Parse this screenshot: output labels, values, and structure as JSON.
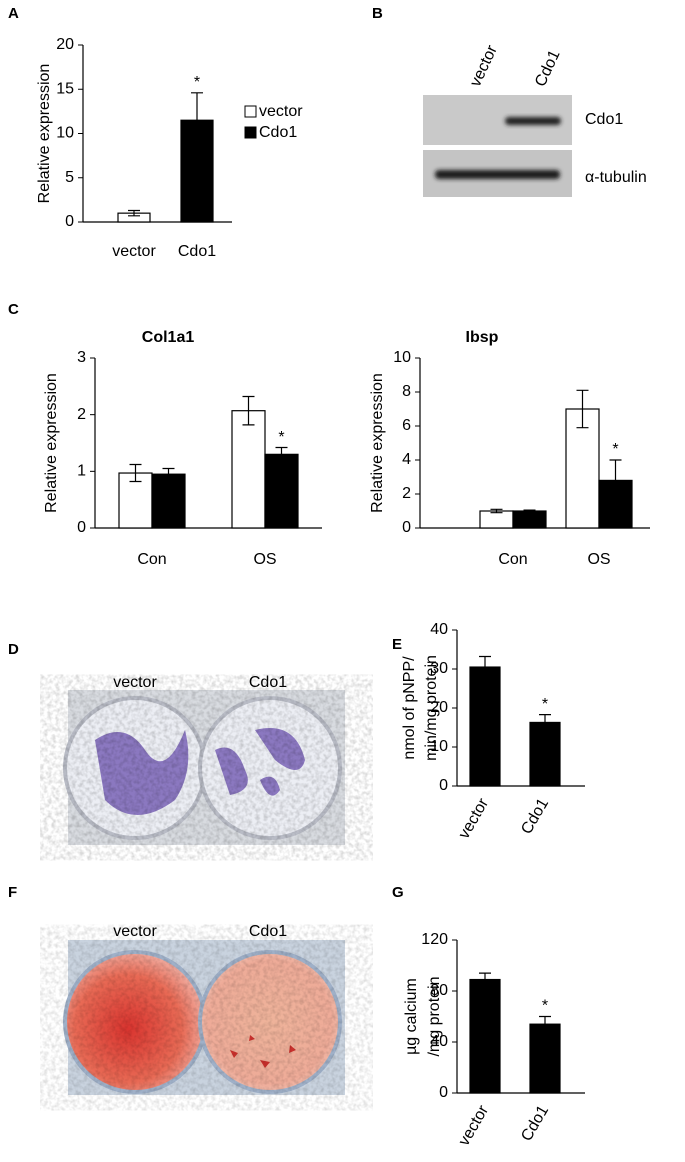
{
  "chart_data": [
    {
      "type": "bar",
      "panel": "A",
      "ylabel": [
        "Relative expression"
      ],
      "categories": [
        "vector",
        "Cdo1"
      ],
      "series": [
        {
          "colors": [
            "#ffffff",
            "#000000"
          ],
          "values": [
            1.0,
            11.5
          ],
          "errors": [
            0.3,
            3.1
          ],
          "stars": [
            null,
            "*"
          ]
        }
      ],
      "legend": [
        {
          "label": "vector",
          "color": "#ffffff"
        },
        {
          "label": "Cdo1",
          "color": "#000000"
        }
      ],
      "ylim": [
        0,
        20
      ],
      "yticks": [
        0,
        5,
        10,
        15,
        20
      ]
    },
    {
      "type": "bar",
      "panel": "C",
      "title": "Col1a1",
      "ylabel": [
        "Relative expression"
      ],
      "categories": [
        "Con",
        "OS"
      ],
      "series": [
        {
          "color": "#ffffff",
          "values": [
            0.97,
            2.07
          ],
          "errors": [
            0.15,
            0.25
          ]
        },
        {
          "color": "#000000",
          "values": [
            0.95,
            1.3
          ],
          "errors": [
            0.1,
            0.12
          ],
          "stars": [
            null,
            "*"
          ]
        }
      ],
      "ylim": [
        0,
        3
      ],
      "yticks": [
        0,
        1,
        2,
        3
      ]
    },
    {
      "type": "bar",
      "title": "Ibsp",
      "ylabel": [
        "Relative expression"
      ],
      "categories": [
        "Con",
        "OS"
      ],
      "series": [
        {
          "color": "#ffffff",
          "values": [
            1.0,
            7.0
          ],
          "errors": [
            0.1,
            1.1
          ]
        },
        {
          "color": "#000000",
          "values": [
            1.0,
            2.8
          ],
          "errors": [
            0.05,
            1.2
          ],
          "stars": [
            null,
            "*"
          ]
        }
      ],
      "ylim": [
        0,
        10
      ],
      "yticks": [
        0,
        2,
        4,
        6,
        8,
        10
      ]
    },
    {
      "type": "bar",
      "panel": "E",
      "ylabel": [
        "nmol of pNPP/",
        "min/mg protein"
      ],
      "categories": [
        "vector",
        "Cdo1"
      ],
      "series": [
        {
          "color": "#000000",
          "values": [
            30.5,
            16.3
          ],
          "errors": [
            2.7,
            2.0
          ],
          "stars": [
            null,
            "*"
          ]
        }
      ],
      "ylim": [
        0,
        40
      ],
      "yticks": [
        0,
        10,
        20,
        30,
        40
      ]
    },
    {
      "type": "bar",
      "panel": "G",
      "ylabel": [
        "µg calcium",
        "/mg protein"
      ],
      "categories": [
        "vector",
        "Cdo1"
      ],
      "series": [
        {
          "color": "#000000",
          "values": [
            89,
            54
          ],
          "errors": [
            5,
            6
          ],
          "stars": [
            null,
            "*"
          ]
        }
      ],
      "ylim": [
        0,
        120
      ],
      "yticks": [
        0,
        40,
        80,
        120
      ]
    }
  ],
  "blot": {
    "panel": "B",
    "columns": [
      "vector",
      "Cdo1"
    ],
    "rows": [
      "Cdo1",
      "α-tubulin"
    ]
  },
  "photos": [
    {
      "panel": "D",
      "labels": [
        "vector",
        "Cdo1"
      ]
    },
    {
      "panel": "F",
      "labels": [
        "vector",
        "Cdo1"
      ]
    }
  ]
}
